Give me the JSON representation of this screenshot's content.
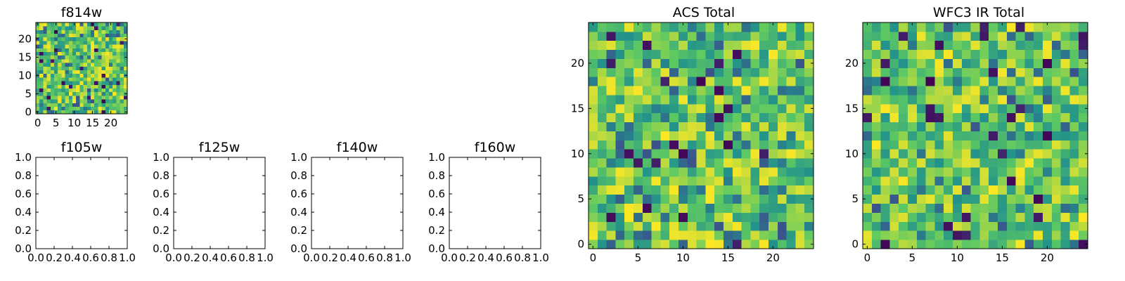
{
  "figure": {
    "background": "#ffffff"
  },
  "colormap": {
    "name": "viridis",
    "stops": [
      "#440154",
      "#3b528b",
      "#21918c",
      "#5ec962",
      "#fde725"
    ]
  },
  "chart_data": [
    {
      "type": "heatmap",
      "title": "f814w",
      "grid_size": 25,
      "xticks": [
        "0",
        "5",
        "10",
        "15",
        "20"
      ],
      "yticks": [
        "0",
        "5",
        "10",
        "15",
        "20"
      ],
      "seed": 11
    },
    {
      "type": "heatmap",
      "title": "f105w",
      "empty": true,
      "xticks": [
        "0.0",
        "0.2",
        "0.4",
        "0.6",
        "0.8",
        "1.0"
      ],
      "yticks": [
        "0.0",
        "0.2",
        "0.4",
        "0.6",
        "0.8",
        "1.0"
      ]
    },
    {
      "type": "heatmap",
      "title": "f125w",
      "empty": true,
      "xticks": [
        "0.0",
        "0.2",
        "0.4",
        "0.6",
        "0.8",
        "1.0"
      ],
      "yticks": [
        "0.0",
        "0.2",
        "0.4",
        "0.6",
        "0.8",
        "1.0"
      ]
    },
    {
      "type": "heatmap",
      "title": "f140w",
      "empty": true,
      "xticks": [
        "0.0",
        "0.2",
        "0.4",
        "0.6",
        "0.8",
        "1.0"
      ],
      "yticks": [
        "0.0",
        "0.2",
        "0.4",
        "0.6",
        "0.8",
        "1.0"
      ]
    },
    {
      "type": "heatmap",
      "title": "f160w",
      "empty": true,
      "xticks": [
        "0.0",
        "0.2",
        "0.4",
        "0.6",
        "0.8",
        "1.0"
      ],
      "yticks": [
        "0.0",
        "0.2",
        "0.4",
        "0.6",
        "0.8",
        "1.0"
      ]
    },
    {
      "type": "heatmap",
      "title": "ACS Total",
      "grid_size": 25,
      "xticks": [
        "0",
        "5",
        "10",
        "15",
        "20"
      ],
      "yticks": [
        "0",
        "5",
        "10",
        "15",
        "20"
      ],
      "seed": 37
    },
    {
      "type": "heatmap",
      "title": "WFC3 IR Total",
      "grid_size": 25,
      "xticks": [
        "0",
        "5",
        "10",
        "15",
        "20"
      ],
      "yticks": [
        "0",
        "5",
        "10",
        "15",
        "20"
      ],
      "seed": 73
    }
  ]
}
